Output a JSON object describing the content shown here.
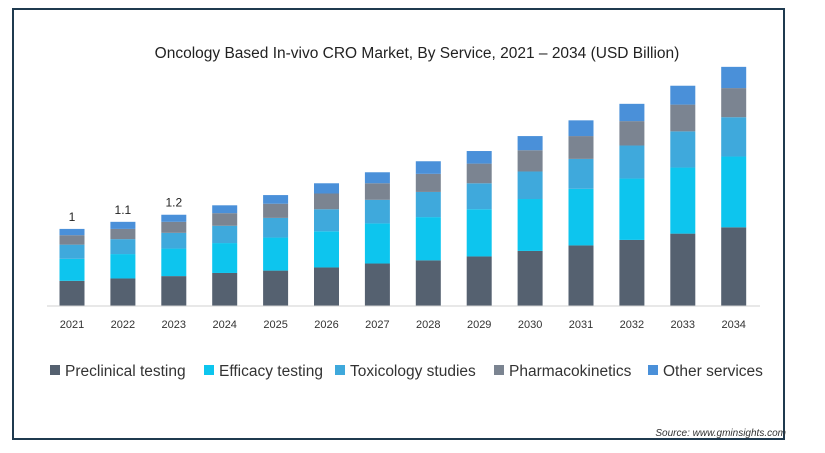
{
  "chart_data": {
    "type": "bar",
    "stacked": true,
    "title": "Oncology Based In-vivo CRO Market, By Service, 2021 – 2034 (USD Billion)",
    "xlabel": "",
    "ylabel": "",
    "ylim": [
      0,
      3.0
    ],
    "grid": false,
    "legend_position": "bottom",
    "categories": [
      "2021",
      "2022",
      "2023",
      "2024",
      "2025",
      "2026",
      "2027",
      "2028",
      "2029",
      "2030",
      "2031",
      "2032",
      "2033",
      "2034"
    ],
    "data_labels": [
      "1",
      "1.1",
      "1.2",
      "",
      "",
      "",
      "",
      "",
      "",
      "",
      "",
      "",
      "",
      ""
    ],
    "series": [
      {
        "name": "Preclinical testing",
        "color": "#556170",
        "values": [
          0.32,
          0.35,
          0.38,
          0.42,
          0.45,
          0.49,
          0.54,
          0.58,
          0.63,
          0.7,
          0.77,
          0.84,
          0.92,
          1.0
        ]
      },
      {
        "name": "Efficacy testing",
        "color": "#0dc5ee",
        "values": [
          0.28,
          0.31,
          0.35,
          0.38,
          0.42,
          0.46,
          0.51,
          0.55,
          0.6,
          0.66,
          0.72,
          0.78,
          0.84,
          0.9
        ]
      },
      {
        "name": "Toxicology studies",
        "color": "#3fa9dc",
        "values": [
          0.18,
          0.19,
          0.2,
          0.22,
          0.25,
          0.28,
          0.3,
          0.32,
          0.33,
          0.35,
          0.38,
          0.42,
          0.46,
          0.5
        ]
      },
      {
        "name": "Pharmacokinetics",
        "color": "#7b8491",
        "values": [
          0.12,
          0.13,
          0.14,
          0.16,
          0.18,
          0.2,
          0.21,
          0.23,
          0.25,
          0.27,
          0.29,
          0.31,
          0.34,
          0.37
        ]
      },
      {
        "name": "Other services",
        "color": "#4a90d9",
        "values": [
          0.08,
          0.09,
          0.09,
          0.1,
          0.11,
          0.13,
          0.14,
          0.16,
          0.16,
          0.18,
          0.2,
          0.22,
          0.24,
          0.27
        ]
      }
    ],
    "source": "Source: www.gminsights.com"
  }
}
